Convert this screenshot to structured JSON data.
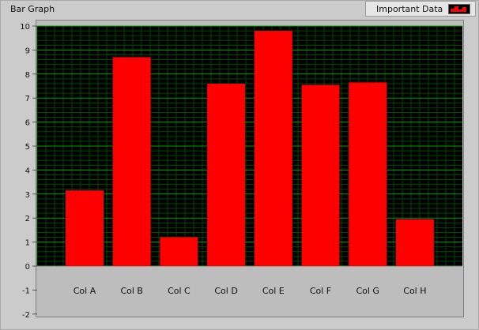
{
  "chart_data": {
    "type": "bar",
    "title": "Bar Graph",
    "categories": [
      "Col A",
      "Col B",
      "Col C",
      "Col D",
      "Col E",
      "Col F",
      "Col G",
      "Col H"
    ],
    "series": [
      {
        "name": "Important Data",
        "values": [
          3.15,
          8.7,
          1.2,
          7.6,
          9.8,
          7.55,
          7.65,
          1.95
        ]
      }
    ],
    "ylim": [
      -2,
      10
    ],
    "yticks": [
      "10",
      "9",
      "8",
      "7",
      "6",
      "5",
      "4",
      "3",
      "2",
      "1",
      "0",
      "-1",
      "-2"
    ],
    "grid": true,
    "legend_position": "top-right",
    "bar_color": "#ff0000",
    "plot_background": "#000000",
    "grid_major_color": "#00a000",
    "grid_minor_color": "#004800"
  }
}
